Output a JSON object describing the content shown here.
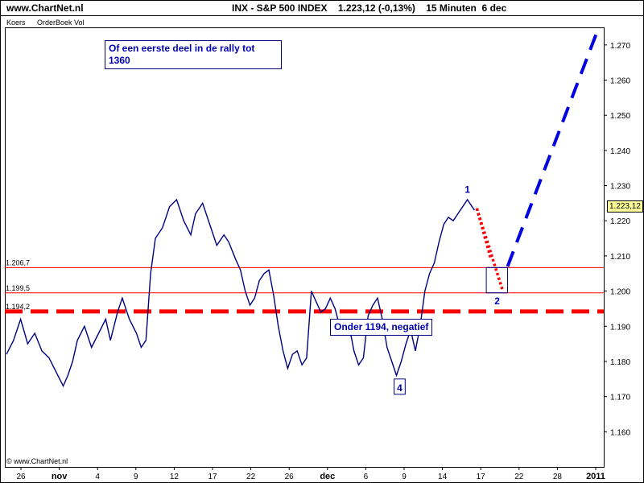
{
  "header": {
    "site": "www.ChartNet.nl",
    "title": "INX - S&P 500 INDEX    1.223,12 (-0,13%)    15 Minuten  6 dec"
  },
  "subtabs": [
    "Koers",
    "OrderBoek Vol"
  ],
  "copyright": "© www.ChartNet.nl",
  "annotations": {
    "rally_text": "Of een eerste deel in de rally tot 1360",
    "negative_text": "Onder 1194, negatief",
    "wave_1": "1",
    "wave_2": "2",
    "wave_4": "4",
    "last_price_badge": "1.223,12"
  },
  "colors": {
    "price_line": "#000080",
    "level_line": "#ff0000",
    "support_dash": "#ff0000",
    "projection_dash": "#0000e0",
    "retrace_dots": "#ff0000",
    "annotation_text": "#0000b0",
    "badge_bg": "#ffff99"
  },
  "chart_data": {
    "type": "line",
    "title": "INX - S&P 500 INDEX",
    "last_value": 1223.12,
    "change_pct": -0.13,
    "interval": "15 Minuten",
    "date": "6 dec",
    "ylim": [
      1150,
      1275
    ],
    "y_ticks": [
      1160,
      1170,
      1180,
      1190,
      1200,
      1210,
      1220,
      1230,
      1240,
      1250,
      1260,
      1270
    ],
    "y_tick_labels": [
      "1.160",
      "1.170",
      "1.180",
      "1.190",
      "1.200",
      "1.210",
      "1.220",
      "1.230",
      "1.240",
      "1.250",
      "1.260",
      "1.270"
    ],
    "x_tick_labels": [
      "26",
      "nov",
      "4",
      "9",
      "12",
      "17",
      "22",
      "26",
      "dec",
      "6",
      "9",
      "14",
      "17",
      "22",
      "28",
      "2011"
    ],
    "x_tick_bold": [
      "nov",
      "dec",
      "2011"
    ],
    "horizontal_levels": [
      {
        "label": "1.206,7",
        "value": 1206.7
      },
      {
        "label": "1.199,5",
        "value": 1199.5
      },
      {
        "label": "1.194,2",
        "value": 1194.2
      }
    ],
    "price_series": {
      "name": "INX",
      "points": [
        [
          0,
          1182
        ],
        [
          1.5,
          1186
        ],
        [
          3,
          1192
        ],
        [
          4.5,
          1185
        ],
        [
          6,
          1188
        ],
        [
          7.5,
          1183
        ],
        [
          9,
          1181
        ],
        [
          10.5,
          1177
        ],
        [
          12,
          1173
        ],
        [
          13,
          1176
        ],
        [
          14,
          1180
        ],
        [
          15,
          1186
        ],
        [
          16.5,
          1190
        ],
        [
          18,
          1184
        ],
        [
          19.5,
          1188
        ],
        [
          21,
          1192
        ],
        [
          22,
          1186
        ],
        [
          23.5,
          1194
        ],
        [
          24.5,
          1198
        ],
        [
          26,
          1192
        ],
        [
          27.5,
          1188
        ],
        [
          28.5,
          1184
        ],
        [
          29.5,
          1186
        ],
        [
          30.5,
          1205
        ],
        [
          31.5,
          1215
        ],
        [
          33,
          1218
        ],
        [
          34.5,
          1224
        ],
        [
          36,
          1226
        ],
        [
          37.5,
          1220
        ],
        [
          39,
          1216
        ],
        [
          40,
          1222
        ],
        [
          41.5,
          1225
        ],
        [
          43,
          1219
        ],
        [
          44.5,
          1213
        ],
        [
          46,
          1216
        ],
        [
          47,
          1214
        ],
        [
          48.5,
          1209
        ],
        [
          49.5,
          1206
        ],
        [
          50.5,
          1200
        ],
        [
          51.5,
          1196
        ],
        [
          52.5,
          1198
        ],
        [
          53.5,
          1203
        ],
        [
          54.5,
          1205
        ],
        [
          55.5,
          1206
        ],
        [
          56.5,
          1199
        ],
        [
          57.5,
          1190
        ],
        [
          58.5,
          1183
        ],
        [
          59.5,
          1178
        ],
        [
          60.5,
          1182
        ],
        [
          61.5,
          1183
        ],
        [
          62.5,
          1179
        ],
        [
          63.5,
          1181
        ],
        [
          64.5,
          1200
        ],
        [
          65.5,
          1197
        ],
        [
          66.5,
          1194
        ],
        [
          67.5,
          1195
        ],
        [
          68.5,
          1198
        ],
        [
          69.5,
          1195
        ],
        [
          70.5,
          1190
        ],
        [
          71.5,
          1188
        ],
        [
          72.5,
          1190
        ],
        [
          73.5,
          1183
        ],
        [
          74.5,
          1179
        ],
        [
          75.5,
          1181
        ],
        [
          76.5,
          1193
        ],
        [
          77.5,
          1196
        ],
        [
          78.5,
          1198
        ],
        [
          79.5,
          1192
        ],
        [
          80.5,
          1184
        ],
        [
          81.5,
          1180
        ],
        [
          82.5,
          1176
        ],
        [
          83.5,
          1180
        ],
        [
          84.5,
          1185
        ],
        [
          85.5,
          1189
        ],
        [
          86.5,
          1183
        ],
        [
          87.5,
          1190
        ],
        [
          88.5,
          1200
        ],
        [
          89.5,
          1205
        ],
        [
          90.5,
          1208
        ],
        [
          91.5,
          1214
        ],
        [
          92.5,
          1219
        ],
        [
          93.5,
          1221
        ],
        [
          94.5,
          1220
        ],
        [
          95.5,
          1222
        ],
        [
          96.5,
          1224
        ],
        [
          97.5,
          1226
        ],
        [
          98.5,
          1224
        ],
        [
          99,
          1223
        ]
      ]
    },
    "retrace_projection": {
      "name": "",
      "points": [
        [
          99.5,
          1223.5
        ],
        [
          102.5,
          1209
        ],
        [
          105,
          1200
        ]
      ]
    },
    "rally_projection": {
      "name": "",
      "points": [
        [
          106,
          1207
        ],
        [
          116,
          1245
        ],
        [
          125,
          1274
        ]
      ]
    },
    "wave_2_box": {
      "x": [
        101.5,
        106
      ],
      "y": [
        1199.5,
        1206.7
      ]
    },
    "wave_4_box": {
      "x": [
        82,
        84
      ]
    }
  }
}
